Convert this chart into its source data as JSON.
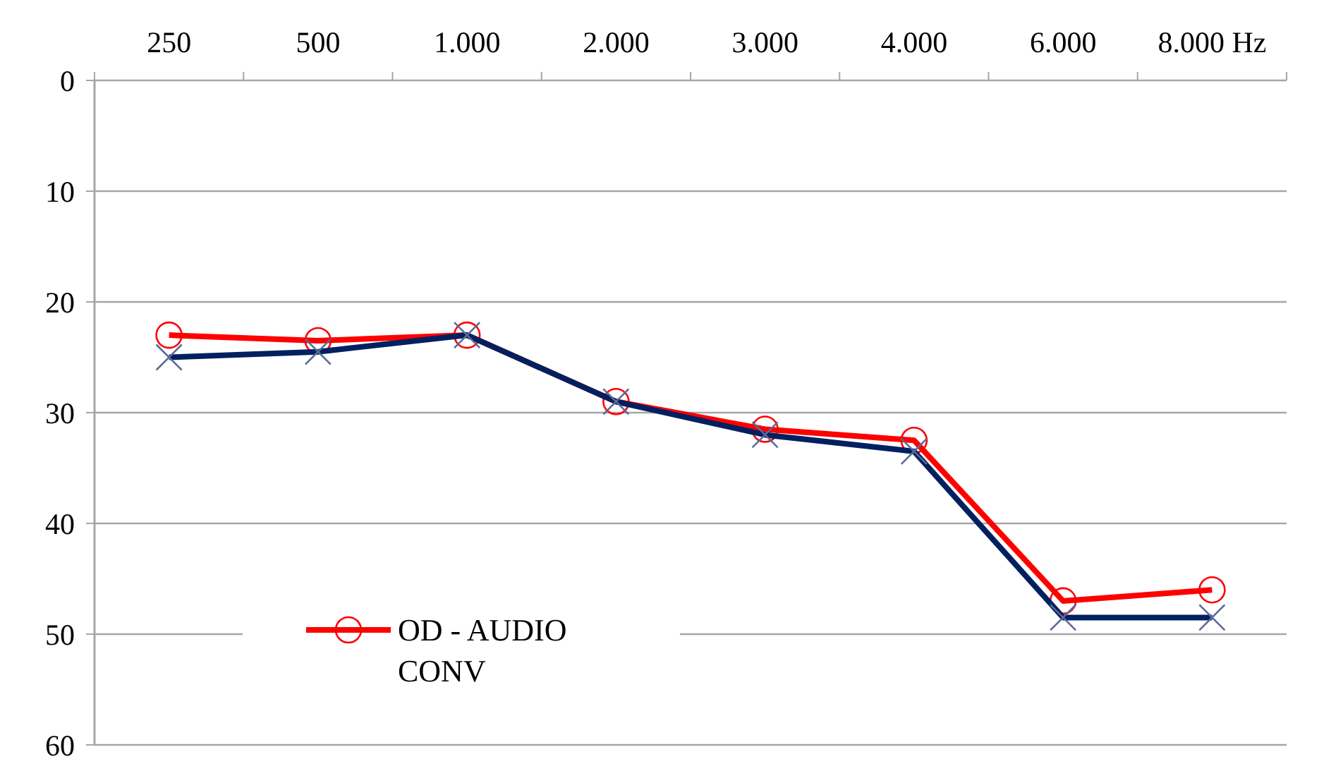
{
  "chart_data": {
    "type": "line",
    "categories": [
      "250",
      "500",
      "1.000",
      "2.000",
      "3.000",
      "4.000",
      "6.000",
      "8.000 Hz"
    ],
    "series": [
      {
        "name": "OD - AUDIO CONV",
        "color": "#ff0000",
        "marker": "circle",
        "values": [
          23,
          23.5,
          23,
          29,
          31.5,
          32.5,
          47,
          46
        ]
      },
      {
        "color": "#002060",
        "marker": "cross",
        "values": [
          25,
          24.5,
          23,
          29,
          32,
          33.5,
          48.5,
          48.5
        ]
      }
    ],
    "ylim": [
      60,
      0
    ],
    "yticks": [
      0,
      10,
      20,
      30,
      40,
      50,
      60
    ],
    "grid": "y",
    "legend": "bottom left",
    "line_style": "solid"
  }
}
